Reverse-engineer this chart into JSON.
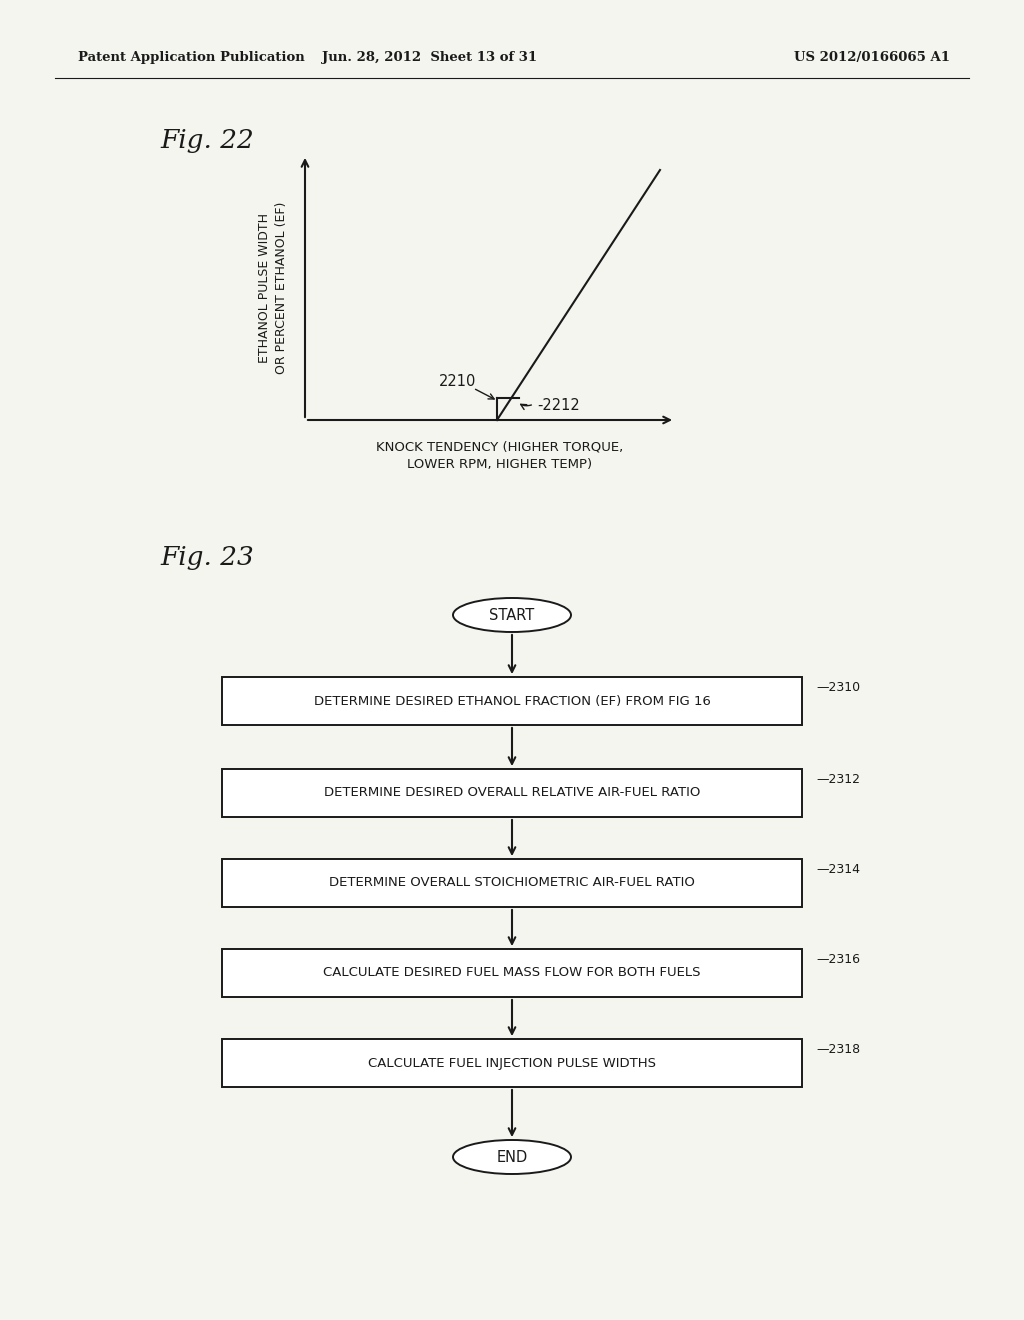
{
  "bg_color": "#f5f5f0",
  "header_left": "Patent Application Publication",
  "header_mid": "Jun. 28, 2012  Sheet 13 of 31",
  "header_right": "US 2012/0166065 A1",
  "fig22_title": "Fig. 22",
  "fig22_ylabel_line1": "ETHANOL PULSE WIDTH",
  "fig22_ylabel_line2": "OR PERCENT ETHANOL (EF)",
  "fig22_xlabel_line1": "KNOCK TENDENCY (HIGHER TORQUE,",
  "fig22_xlabel_line2": "LOWER RPM, HIGHER TEMP)",
  "fig22_label_2210": "2210",
  "fig22_label_2212": "-2212",
  "fig23_title": "Fig. 23",
  "node_texts": {
    "start": "START",
    "2310": "DETERMINE DESIRED ETHANOL FRACTION (EF) FROM FIG 16",
    "2312": "DETERMINE DESIRED OVERALL RELATIVE AIR-FUEL RATIO",
    "2314": "DETERMINE OVERALL STOICHIOMETRIC AIR-FUEL RATIO",
    "2316": "CALCULATE DESIRED FUEL MASS FLOW FOR BOTH FUELS",
    "2318": "CALCULATE FUEL INJECTION PULSE WIDTHS",
    "end": "END"
  },
  "text_color": "#1a1a1a",
  "line_color": "#1a1a1a",
  "box_fill": "#ffffff",
  "box_edge": "#1a1a1a"
}
